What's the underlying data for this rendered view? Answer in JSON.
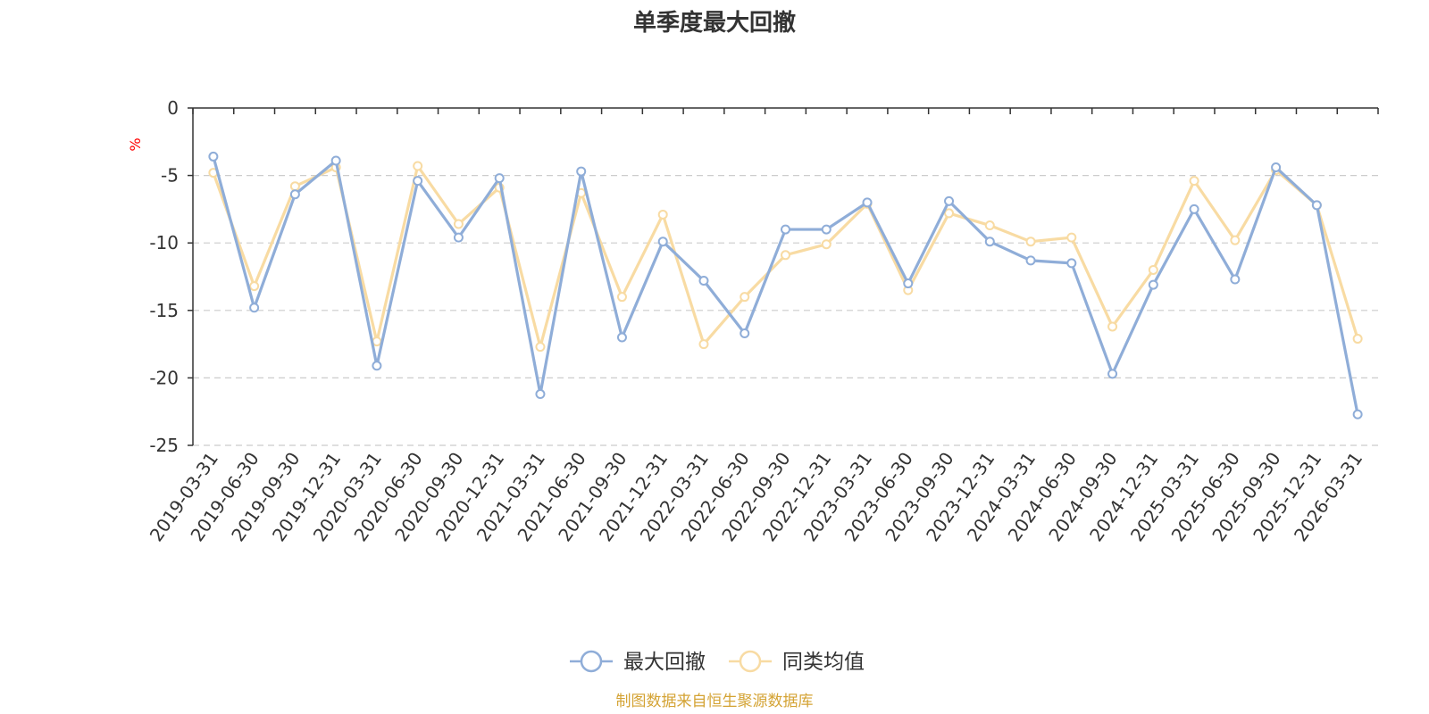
{
  "chart_data": {
    "type": "line",
    "title": "单季度最大回撤",
    "ylabel": "%",
    "ylim": [
      -25,
      0
    ],
    "yticks": [
      0,
      -5,
      -10,
      -15,
      -20,
      -25
    ],
    "grid": true,
    "legend_position": "bottom",
    "categories": [
      "2019-03-31",
      "2019-06-30",
      "2019-09-30",
      "2019-12-31",
      "2020-03-31",
      "2020-06-30",
      "2020-09-30",
      "2020-12-31",
      "2021-03-31",
      "2021-06-30",
      "2021-09-30",
      "2021-12-31",
      "2022-03-31",
      "2022-06-30",
      "2022-09-30",
      "2022-12-31",
      "2023-03-31",
      "2023-06-30",
      "2023-09-30",
      "2023-12-31",
      "2024-03-31",
      "2024-06-30",
      "2024-09-30",
      "2024-12-31",
      "2025-03-31",
      "2025-06-30",
      "2025-09-30",
      "2025-12-31",
      "2026-03-31"
    ],
    "series": [
      {
        "name": "最大回撤",
        "color": "#8fadd8",
        "values": [
          -3.6,
          -14.8,
          -6.4,
          -3.9,
          -19.1,
          -5.4,
          -9.6,
          -5.2,
          -21.2,
          -4.7,
          -17.0,
          -9.9,
          -12.8,
          -16.7,
          -9.0,
          -9.0,
          -7.0,
          -13.0,
          -6.9,
          -9.9,
          -11.3,
          -11.5,
          -19.7,
          -13.1,
          -7.5,
          -12.7,
          -4.4,
          -7.2,
          -22.7
        ]
      },
      {
        "name": "同类均值",
        "color": "#f8dba3",
        "values": [
          -4.8,
          -13.2,
          -5.8,
          -4.4,
          -17.3,
          -4.3,
          -8.6,
          -5.9,
          -17.7,
          -6.3,
          -14.0,
          -7.9,
          -17.5,
          -14.0,
          -10.9,
          -10.1,
          -7.1,
          -13.5,
          -7.8,
          -8.7,
          -9.9,
          -9.6,
          -16.2,
          -12.0,
          -5.4,
          -9.8,
          -4.6,
          -7.2,
          -17.1
        ]
      }
    ]
  },
  "source_note": "制图数据来自恒生聚源数据库",
  "colors": {
    "axis": "#333333",
    "grid": "#cccccc",
    "ylabel": "#ff0000",
    "source": "#d4a334",
    "text": "#333333"
  }
}
